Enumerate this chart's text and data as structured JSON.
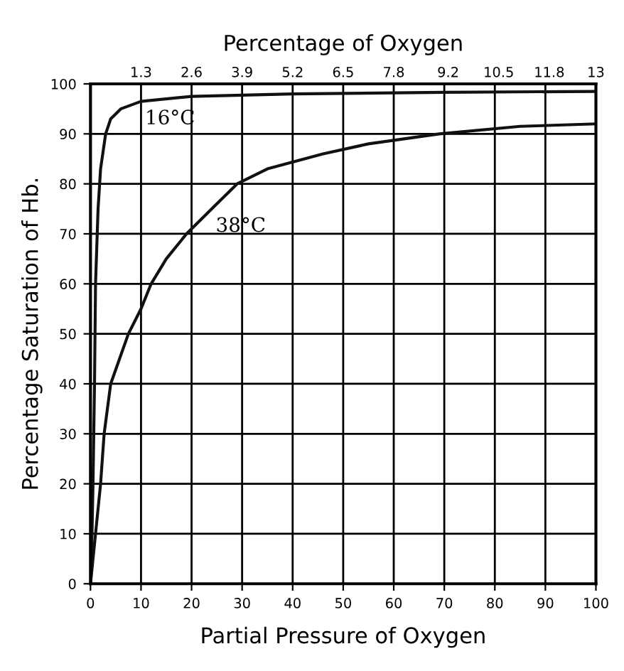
{
  "chart_data": {
    "type": "line",
    "x2label": "Percentage of Oxygen",
    "xlabel": "Partial Pressure of Oxygen",
    "ylabel": "Percentage Saturation of Hb.",
    "series": [
      {
        "color": "#111111",
        "x": [
          0,
          0.3,
          0.5,
          0.8,
          1,
          1.5,
          2,
          3,
          4,
          6,
          10,
          20,
          40,
          70,
          100
        ],
        "values": [
          0,
          10,
          20,
          40,
          60,
          75,
          83,
          90,
          93,
          95,
          96.5,
          97.5,
          98,
          98.3,
          98.5
        ]
      },
      {
        "color": "#111111",
        "x": [
          0,
          1,
          2,
          2.7,
          4,
          7.5,
          10,
          12,
          15,
          19,
          24,
          29,
          35,
          46,
          55,
          69,
          85,
          100
        ],
        "values": [
          0,
          10,
          20,
          30,
          40,
          50,
          55,
          60,
          65,
          70,
          75,
          80,
          83,
          86,
          88,
          90,
          91.5,
          92
        ]
      }
    ],
    "annotations": [
      {
        "text": "16°C",
        "x": 10,
        "y": 96.5
      },
      {
        "text": "38°C",
        "x": 24,
        "y": 75
      }
    ],
    "xlim": [
      0,
      100
    ],
    "xticks": [
      0,
      10,
      20,
      30,
      40,
      50,
      60,
      70,
      80,
      90,
      100
    ],
    "ylim": [
      0,
      100
    ],
    "yticks": [
      0,
      10,
      20,
      30,
      40,
      50,
      60,
      70,
      80,
      90,
      100
    ],
    "x2lim": [
      0,
      13
    ],
    "x2ticks": [
      1.3,
      2.6,
      3.9,
      5.2,
      6.5,
      7.8,
      9.2,
      10.5,
      11.8,
      13
    ],
    "grid": true,
    "line_style": "solid",
    "marker": "none"
  }
}
